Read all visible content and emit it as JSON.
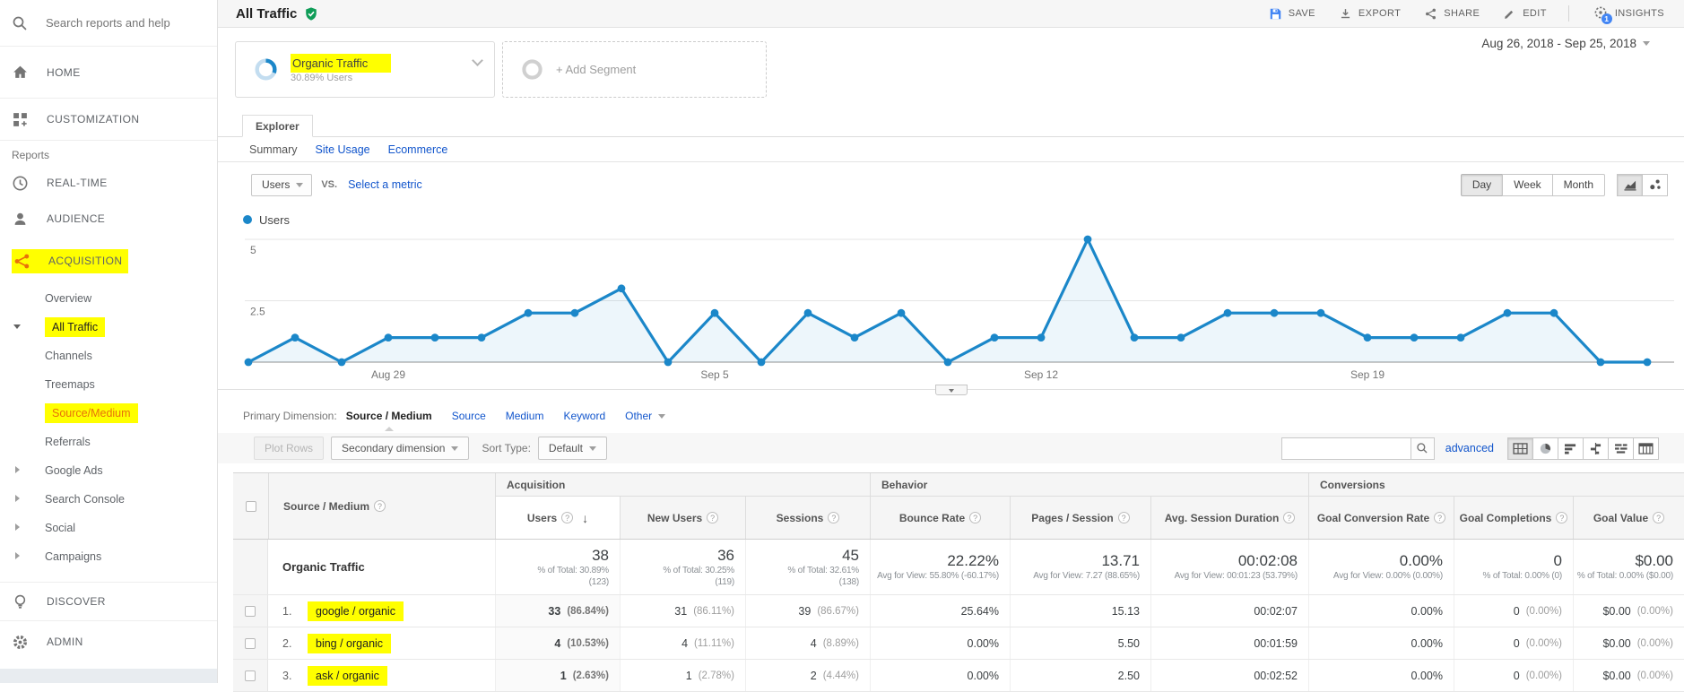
{
  "colors": {
    "accent_orange": "#e8710a",
    "link_blue": "#1155cc",
    "chart_blue": "#1b87c9",
    "highlight_yellow": "#ffff00",
    "shield_green": "#0f9d58",
    "insights_badge_blue": "#4285f4"
  },
  "sidebar": {
    "search_placeholder": "Search reports and help",
    "home": "HOME",
    "customization": "CUSTOMIZATION",
    "reports_label": "Reports",
    "realtime": "REAL-TIME",
    "audience": "AUDIENCE",
    "acquisition": "ACQUISITION",
    "acq_items": {
      "overview": "Overview",
      "all_traffic": "All Traffic",
      "channels": "Channels",
      "treemaps": "Treemaps",
      "source_medium": "Source/Medium",
      "referrals": "Referrals",
      "google_ads": "Google Ads",
      "search_console": "Search Console",
      "social": "Social",
      "campaigns": "Campaigns"
    },
    "discover": "DISCOVER",
    "admin": "ADMIN"
  },
  "header": {
    "title": "All Traffic",
    "save": "SAVE",
    "export": "EXPORT",
    "share": "SHARE",
    "edit": "EDIT",
    "insights": "INSIGHTS",
    "insights_badge": "1",
    "date_range": "Aug 26, 2018 - Sep 25, 2018"
  },
  "segments": {
    "primary_name": "Organic Traffic",
    "primary_sub": "30.89% Users",
    "add_label": "+ Add Segment"
  },
  "explorer": {
    "tab": "Explorer",
    "subtabs": [
      "Summary",
      "Site Usage",
      "Ecommerce"
    ],
    "metric_primary": "Users",
    "vs": "VS.",
    "select_metric": "Select a metric",
    "granularity": [
      "Day",
      "Week",
      "Month"
    ],
    "legend": "Users"
  },
  "chart_data": {
    "type": "line",
    "series_name": "Users",
    "x": [
      "Aug 26",
      "Aug 27",
      "Aug 28",
      "Aug 29",
      "Aug 30",
      "Aug 31",
      "Sep 1",
      "Sep 2",
      "Sep 3",
      "Sep 4",
      "Sep 5",
      "Sep 6",
      "Sep 7",
      "Sep 8",
      "Sep 9",
      "Sep 10",
      "Sep 11",
      "Sep 12",
      "Sep 13",
      "Sep 14",
      "Sep 15",
      "Sep 16",
      "Sep 17",
      "Sep 18",
      "Sep 19",
      "Sep 20",
      "Sep 21",
      "Sep 22",
      "Sep 23",
      "Sep 24",
      "Sep 25"
    ],
    "values": [
      0,
      1,
      0,
      1,
      1,
      1,
      2,
      2,
      3,
      0,
      2,
      0,
      2,
      1,
      2,
      0,
      1,
      1,
      5,
      1,
      1,
      2,
      2,
      2,
      1,
      1,
      1,
      2,
      2,
      0,
      0
    ],
    "ylim": [
      0,
      5
    ],
    "yticks": [
      5,
      2.5
    ],
    "x_tick_labels": [
      {
        "i": 3,
        "label": "Aug 29"
      },
      {
        "i": 10,
        "label": "Sep 5"
      },
      {
        "i": 17,
        "label": "Sep 12"
      },
      {
        "i": 24,
        "label": "Sep 19"
      }
    ],
    "grid": true,
    "legend_position": "top-left",
    "color": "#1b87c9"
  },
  "dimension_bar": {
    "label": "Primary Dimension:",
    "active": "Source / Medium",
    "links": [
      "Source",
      "Medium",
      "Keyword",
      "Other"
    ]
  },
  "toolbar": {
    "plot_rows": "Plot Rows",
    "secondary_dimension": "Secondary dimension",
    "sort_type_label": "Sort Type:",
    "sort_type_value": "Default",
    "search_value": "",
    "advanced": "advanced"
  },
  "table": {
    "groups": [
      "Acquisition",
      "Behavior",
      "Conversions"
    ],
    "dim_header": "Source / Medium",
    "columns": [
      "Users",
      "New Users",
      "Sessions",
      "Bounce Rate",
      "Pages / Session",
      "Avg. Session Duration",
      "Goal Conversion Rate",
      "Goal Completions",
      "Goal Value"
    ],
    "totals": {
      "name": "Organic Traffic",
      "cells": [
        {
          "main": "38",
          "sub1": "% of Total: 30.89%",
          "sub2": "(123)"
        },
        {
          "main": "36",
          "sub1": "% of Total: 30.25%",
          "sub2": "(119)"
        },
        {
          "main": "45",
          "sub1": "% of Total: 32.61%",
          "sub2": "(138)"
        },
        {
          "main": "22.22%",
          "sub1": "Avg for View: 55.80% (-60.17%)"
        },
        {
          "main": "13.71",
          "sub1": "Avg for View: 7.27 (88.65%)"
        },
        {
          "main": "00:02:08",
          "sub1": "Avg for View: 00:01:23 (53.79%)"
        },
        {
          "main": "0.00%",
          "sub1": "Avg for View: 0.00% (0.00%)"
        },
        {
          "main": "0",
          "sub1": "% of Total: 0.00% (0)"
        },
        {
          "main": "$0.00",
          "sub1": "% of Total: 0.00% ($0.00)"
        }
      ]
    },
    "rows": [
      {
        "index": "1.",
        "name": "google / organic",
        "cells": [
          {
            "v": "33",
            "p": "(86.84%)"
          },
          {
            "v": "31",
            "p": "(86.11%)"
          },
          {
            "v": "39",
            "p": "(86.67%)"
          },
          {
            "v": "25.64%"
          },
          {
            "v": "15.13"
          },
          {
            "v": "00:02:07"
          },
          {
            "v": "0.00%"
          },
          {
            "v": "0",
            "p": "(0.00%)"
          },
          {
            "v": "$0.00",
            "p": "(0.00%)"
          }
        ]
      },
      {
        "index": "2.",
        "name": "bing / organic",
        "cells": [
          {
            "v": "4",
            "p": "(10.53%)"
          },
          {
            "v": "4",
            "p": "(11.11%)"
          },
          {
            "v": "4",
            "p": "(8.89%)"
          },
          {
            "v": "0.00%"
          },
          {
            "v": "5.50"
          },
          {
            "v": "00:01:59"
          },
          {
            "v": "0.00%"
          },
          {
            "v": "0",
            "p": "(0.00%)"
          },
          {
            "v": "$0.00",
            "p": "(0.00%)"
          }
        ]
      },
      {
        "index": "3.",
        "name": "ask / organic",
        "cells": [
          {
            "v": "1",
            "p": "(2.63%)"
          },
          {
            "v": "1",
            "p": "(2.78%)"
          },
          {
            "v": "2",
            "p": "(4.44%)"
          },
          {
            "v": "0.00%"
          },
          {
            "v": "2.50"
          },
          {
            "v": "00:02:52"
          },
          {
            "v": "0.00%"
          },
          {
            "v": "0",
            "p": "(0.00%)"
          },
          {
            "v": "$0.00",
            "p": "(0.00%)"
          }
        ]
      }
    ]
  }
}
